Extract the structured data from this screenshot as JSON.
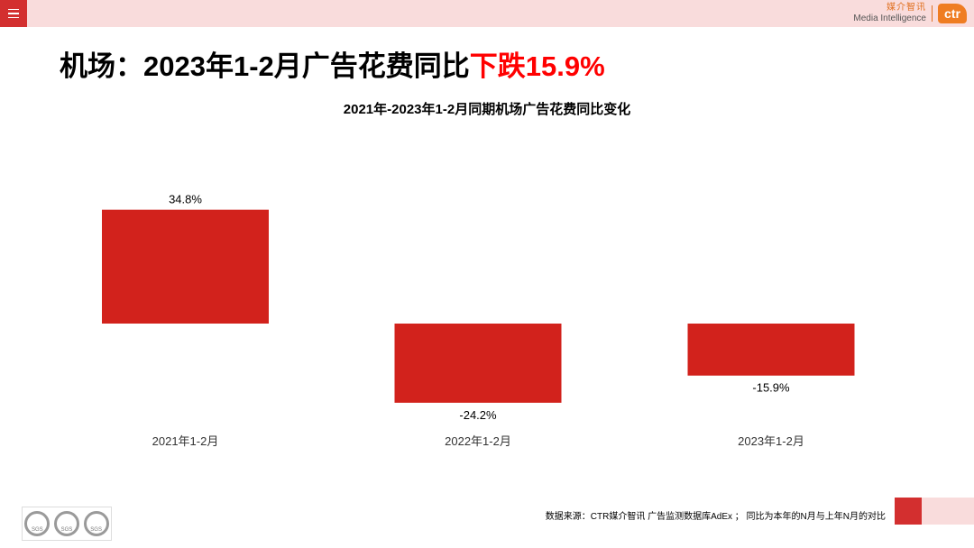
{
  "header": {
    "menu_icon": "hamburger-menu-icon",
    "logo": {
      "cn": "媒介智讯",
      "en": "Media Intelligence",
      "mark": "ctr"
    }
  },
  "page_title": {
    "prefix": "机场：2023年1-2月广告花费同比",
    "highlight": "下跌15.9%"
  },
  "colors": {
    "bar": "#d2221c",
    "highlight": "#ff0000",
    "band": "#f9dcdc",
    "accent": "#d32f2f"
  },
  "chart_data": {
    "type": "bar",
    "title": "2021年-2023年1-2月同期机场广告花费同比变化",
    "categories": [
      "2021年1-2月",
      "2022年1-2月",
      "2023年1-2月"
    ],
    "values": [
      34.8,
      -24.2,
      -15.9
    ],
    "labels": [
      "34.8%",
      "-24.2%",
      "-15.9%"
    ],
    "unit": "%",
    "ylim": [
      -40,
      40
    ],
    "grid": false,
    "legend": "none"
  },
  "footer": {
    "seal_label": "SGS",
    "source": "数据来源：CTR媒介智讯 广告监测数据库AdEx ； 同比为本年的N月与上年N月的对比"
  }
}
